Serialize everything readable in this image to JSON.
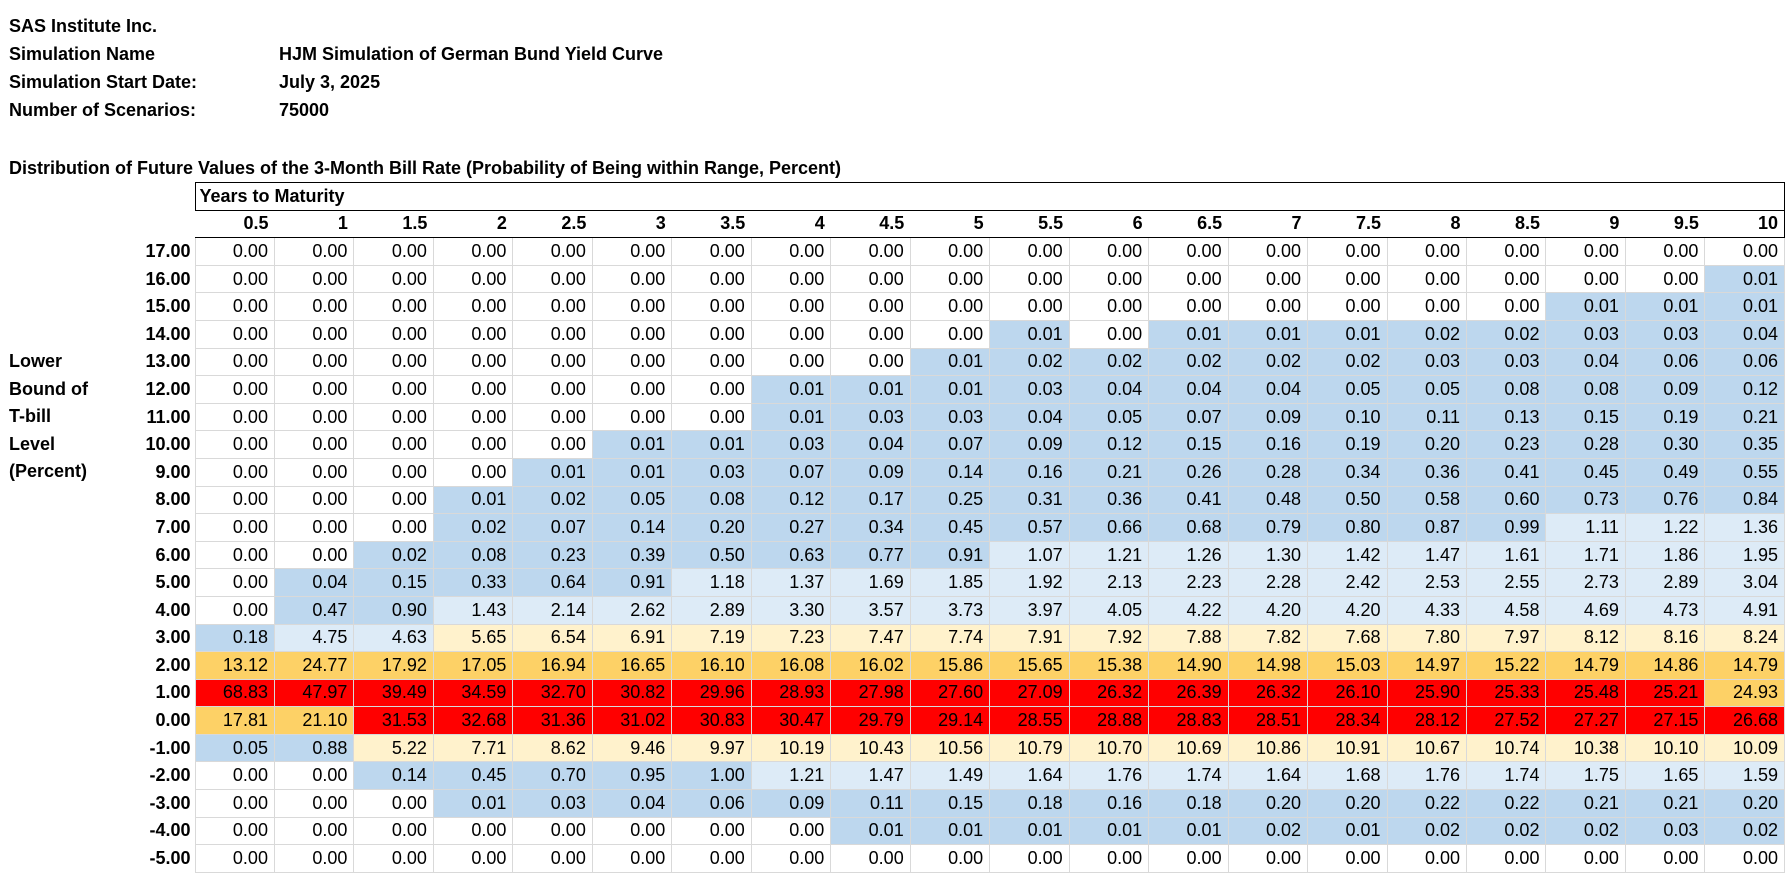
{
  "header": {
    "company": "SAS Institute Inc.",
    "fields": [
      {
        "label": "Simulation Name",
        "value": "HJM Simulation of German Bund Yield Curve"
      },
      {
        "label": "Simulation Start Date:",
        "value": "July 3, 2025"
      },
      {
        "label": "Number of Scenarios:",
        "value": "75000"
      }
    ]
  },
  "table": {
    "title": "Distribution of Future Values of the 3-Month Bill Rate (Probability of Being within Range, Percent)",
    "column_group": "Years to Maturity",
    "row_axis_label": [
      "Lower",
      "Bound of",
      "T-bill",
      "Level",
      "(Percent)"
    ],
    "columns": [
      "0.5",
      "1",
      "1.5",
      "2",
      "2.5",
      "3",
      "3.5",
      "4",
      "4.5",
      "5",
      "5.5",
      "6",
      "6.5",
      "7",
      "7.5",
      "8",
      "8.5",
      "9",
      "9.5",
      "10"
    ],
    "rows": [
      {
        "label": "17.00",
        "values": [
          "0.00",
          "0.00",
          "0.00",
          "0.00",
          "0.00",
          "0.00",
          "0.00",
          "0.00",
          "0.00",
          "0.00",
          "0.00",
          "0.00",
          "0.00",
          "0.00",
          "0.00",
          "0.00",
          "0.00",
          "0.00",
          "0.00",
          "0.00"
        ]
      },
      {
        "label": "16.00",
        "values": [
          "0.00",
          "0.00",
          "0.00",
          "0.00",
          "0.00",
          "0.00",
          "0.00",
          "0.00",
          "0.00",
          "0.00",
          "0.00",
          "0.00",
          "0.00",
          "0.00",
          "0.00",
          "0.00",
          "0.00",
          "0.00",
          "0.00",
          "0.01"
        ]
      },
      {
        "label": "15.00",
        "values": [
          "0.00",
          "0.00",
          "0.00",
          "0.00",
          "0.00",
          "0.00",
          "0.00",
          "0.00",
          "0.00",
          "0.00",
          "0.00",
          "0.00",
          "0.00",
          "0.00",
          "0.00",
          "0.00",
          "0.00",
          "0.01",
          "0.01",
          "0.01"
        ]
      },
      {
        "label": "14.00",
        "values": [
          "0.00",
          "0.00",
          "0.00",
          "0.00",
          "0.00",
          "0.00",
          "0.00",
          "0.00",
          "0.00",
          "0.00",
          "0.01",
          "0.00",
          "0.01",
          "0.01",
          "0.01",
          "0.02",
          "0.02",
          "0.03",
          "0.03",
          "0.04"
        ]
      },
      {
        "label": "13.00",
        "values": [
          "0.00",
          "0.00",
          "0.00",
          "0.00",
          "0.00",
          "0.00",
          "0.00",
          "0.00",
          "0.00",
          "0.01",
          "0.02",
          "0.02",
          "0.02",
          "0.02",
          "0.02",
          "0.03",
          "0.03",
          "0.04",
          "0.06",
          "0.06"
        ]
      },
      {
        "label": "12.00",
        "values": [
          "0.00",
          "0.00",
          "0.00",
          "0.00",
          "0.00",
          "0.00",
          "0.00",
          "0.01",
          "0.01",
          "0.01",
          "0.03",
          "0.04",
          "0.04",
          "0.04",
          "0.05",
          "0.05",
          "0.08",
          "0.08",
          "0.09",
          "0.12"
        ]
      },
      {
        "label": "11.00",
        "values": [
          "0.00",
          "0.00",
          "0.00",
          "0.00",
          "0.00",
          "0.00",
          "0.00",
          "0.01",
          "0.03",
          "0.03",
          "0.04",
          "0.05",
          "0.07",
          "0.09",
          "0.10",
          "0.11",
          "0.13",
          "0.15",
          "0.19",
          "0.21"
        ]
      },
      {
        "label": "10.00",
        "values": [
          "0.00",
          "0.00",
          "0.00",
          "0.00",
          "0.00",
          "0.01",
          "0.01",
          "0.03",
          "0.04",
          "0.07",
          "0.09",
          "0.12",
          "0.15",
          "0.16",
          "0.19",
          "0.20",
          "0.23",
          "0.28",
          "0.30",
          "0.35"
        ]
      },
      {
        "label": "9.00",
        "values": [
          "0.00",
          "0.00",
          "0.00",
          "0.00",
          "0.01",
          "0.01",
          "0.03",
          "0.07",
          "0.09",
          "0.14",
          "0.16",
          "0.21",
          "0.26",
          "0.28",
          "0.34",
          "0.36",
          "0.41",
          "0.45",
          "0.49",
          "0.55"
        ]
      },
      {
        "label": "8.00",
        "values": [
          "0.00",
          "0.00",
          "0.00",
          "0.01",
          "0.02",
          "0.05",
          "0.08",
          "0.12",
          "0.17",
          "0.25",
          "0.31",
          "0.36",
          "0.41",
          "0.48",
          "0.50",
          "0.58",
          "0.60",
          "0.73",
          "0.76",
          "0.84"
        ]
      },
      {
        "label": "7.00",
        "values": [
          "0.00",
          "0.00",
          "0.00",
          "0.02",
          "0.07",
          "0.14",
          "0.20",
          "0.27",
          "0.34",
          "0.45",
          "0.57",
          "0.66",
          "0.68",
          "0.79",
          "0.80",
          "0.87",
          "0.99",
          "1.11",
          "1.22",
          "1.36"
        ]
      },
      {
        "label": "6.00",
        "values": [
          "0.00",
          "0.00",
          "0.02",
          "0.08",
          "0.23",
          "0.39",
          "0.50",
          "0.63",
          "0.77",
          "0.91",
          "1.07",
          "1.21",
          "1.26",
          "1.30",
          "1.42",
          "1.47",
          "1.61",
          "1.71",
          "1.86",
          "1.95"
        ]
      },
      {
        "label": "5.00",
        "values": [
          "0.00",
          "0.04",
          "0.15",
          "0.33",
          "0.64",
          "0.91",
          "1.18",
          "1.37",
          "1.69",
          "1.85",
          "1.92",
          "2.13",
          "2.23",
          "2.28",
          "2.42",
          "2.53",
          "2.55",
          "2.73",
          "2.89",
          "3.04"
        ]
      },
      {
        "label": "4.00",
        "values": [
          "0.00",
          "0.47",
          "0.90",
          "1.43",
          "2.14",
          "2.62",
          "2.89",
          "3.30",
          "3.57",
          "3.73",
          "3.97",
          "4.05",
          "4.22",
          "4.20",
          "4.20",
          "4.33",
          "4.58",
          "4.69",
          "4.73",
          "4.91"
        ]
      },
      {
        "label": "3.00",
        "values": [
          "0.18",
          "4.75",
          "4.63",
          "5.65",
          "6.54",
          "6.91",
          "7.19",
          "7.23",
          "7.47",
          "7.74",
          "7.91",
          "7.92",
          "7.88",
          "7.82",
          "7.68",
          "7.80",
          "7.97",
          "8.12",
          "8.16",
          "8.24"
        ]
      },
      {
        "label": "2.00",
        "values": [
          "13.12",
          "24.77",
          "17.92",
          "17.05",
          "16.94",
          "16.65",
          "16.10",
          "16.08",
          "16.02",
          "15.86",
          "15.65",
          "15.38",
          "14.90",
          "14.98",
          "15.03",
          "14.97",
          "15.22",
          "14.79",
          "14.86",
          "14.79"
        ]
      },
      {
        "label": "1.00",
        "values": [
          "68.83",
          "47.97",
          "39.49",
          "34.59",
          "32.70",
          "30.82",
          "29.96",
          "28.93",
          "27.98",
          "27.60",
          "27.09",
          "26.32",
          "26.39",
          "26.32",
          "26.10",
          "25.90",
          "25.33",
          "25.48",
          "25.21",
          "24.93"
        ]
      },
      {
        "label": "0.00",
        "values": [
          "17.81",
          "21.10",
          "31.53",
          "32.68",
          "31.36",
          "31.02",
          "30.83",
          "30.47",
          "29.79",
          "29.14",
          "28.55",
          "28.88",
          "28.83",
          "28.51",
          "28.34",
          "28.12",
          "27.52",
          "27.27",
          "27.15",
          "26.68"
        ]
      },
      {
        "label": "-1.00",
        "values": [
          "0.05",
          "0.88",
          "5.22",
          "7.71",
          "8.62",
          "9.46",
          "9.97",
          "10.19",
          "10.43",
          "10.56",
          "10.79",
          "10.70",
          "10.69",
          "10.86",
          "10.91",
          "10.67",
          "10.74",
          "10.38",
          "10.10",
          "10.09"
        ]
      },
      {
        "label": "-2.00",
        "values": [
          "0.00",
          "0.00",
          "0.14",
          "0.45",
          "0.70",
          "0.95",
          "1.00",
          "1.21",
          "1.47",
          "1.49",
          "1.64",
          "1.76",
          "1.74",
          "1.64",
          "1.68",
          "1.76",
          "1.74",
          "1.75",
          "1.65",
          "1.59"
        ]
      },
      {
        "label": "-3.00",
        "values": [
          "0.00",
          "0.00",
          "0.00",
          "0.01",
          "0.03",
          "0.04",
          "0.06",
          "0.09",
          "0.11",
          "0.15",
          "0.18",
          "0.16",
          "0.18",
          "0.20",
          "0.20",
          "0.22",
          "0.22",
          "0.21",
          "0.21",
          "0.20"
        ]
      },
      {
        "label": "-4.00",
        "values": [
          "0.00",
          "0.00",
          "0.00",
          "0.00",
          "0.00",
          "0.00",
          "0.00",
          "0.00",
          "0.01",
          "0.01",
          "0.01",
          "0.01",
          "0.01",
          "0.02",
          "0.01",
          "0.02",
          "0.02",
          "0.02",
          "0.03",
          "0.02"
        ]
      },
      {
        "label": "-5.00",
        "values": [
          "0.00",
          "0.00",
          "0.00",
          "0.00",
          "0.00",
          "0.00",
          "0.00",
          "0.00",
          "0.00",
          "0.00",
          "0.00",
          "0.00",
          "0.00",
          "0.00",
          "0.00",
          "0.00",
          "0.00",
          "0.00",
          "0.00",
          "0.00"
        ]
      }
    ]
  }
}
